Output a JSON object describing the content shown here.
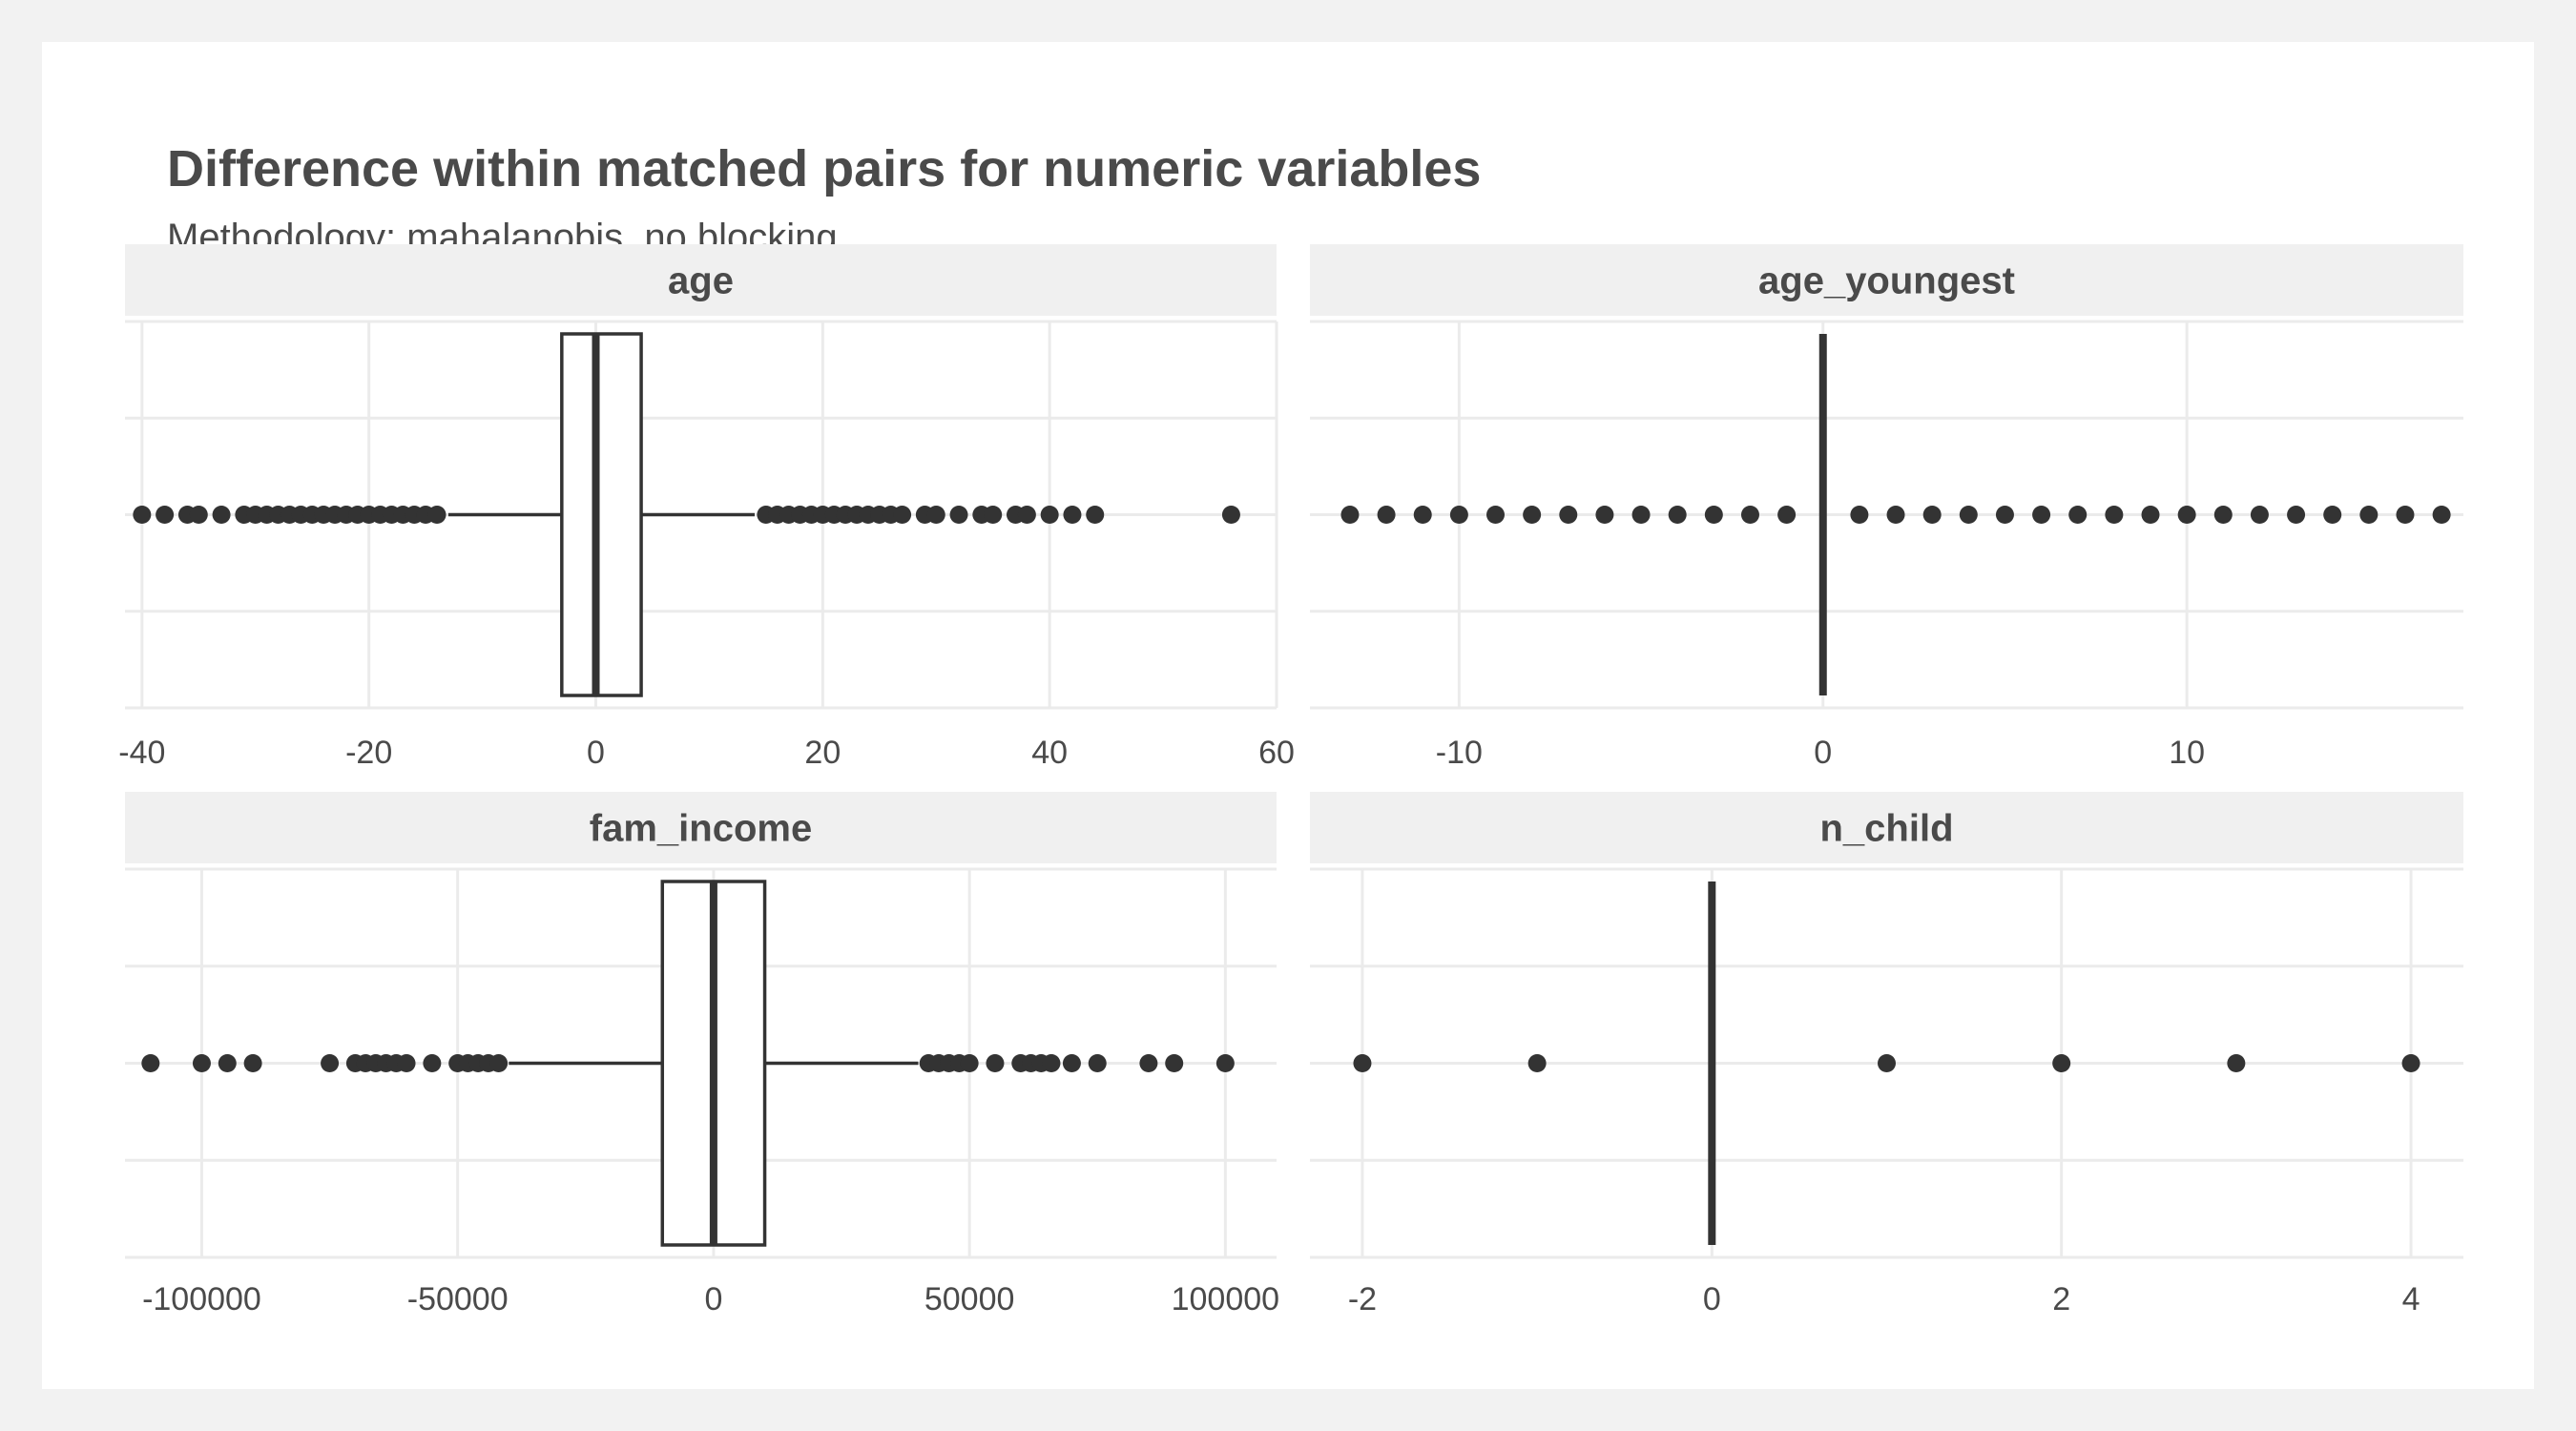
{
  "title": "Difference within matched pairs for numeric variables",
  "subtitle": "Methodology: mahalanobis, no blocking",
  "colors": {
    "background": "#f2f2f2",
    "panel": "#ffffff",
    "strip": "#f0f0f0",
    "grid": "#ebebeb",
    "ink": "#333333",
    "text": "#4a4a4a"
  },
  "chart_data": [
    {
      "type": "boxplot",
      "panel": "age",
      "xlim": [
        -41.5,
        60
      ],
      "ticks": [
        -40,
        -20,
        0,
        20,
        40,
        60
      ],
      "tick_labels": [
        "-40",
        "-20",
        "0",
        "20",
        "40",
        "60"
      ],
      "box": {
        "q1": -3,
        "median": 0,
        "q3": 4,
        "whisker_low": -13,
        "whisker_high": 14
      },
      "outliers": [
        -40,
        -38,
        -36,
        -35,
        -33,
        -31,
        -30,
        -29,
        -28,
        -27,
        -26,
        -25,
        -24,
        -23,
        -22,
        -21,
        -20,
        -19,
        -18,
        -17,
        -16,
        -15,
        -14,
        15,
        16,
        17,
        18,
        19,
        20,
        21,
        22,
        23,
        24,
        25,
        26,
        27,
        29,
        30,
        32,
        34,
        35,
        37,
        38,
        40,
        42,
        44,
        56
      ]
    },
    {
      "type": "boxplot",
      "panel": "age_youngest",
      "xlim": [
        -14.1,
        17.6
      ],
      "ticks": [
        -10,
        0,
        10
      ],
      "tick_labels": [
        "-10",
        "0",
        "10"
      ],
      "box": {
        "q1": 0,
        "median": 0,
        "q3": 0,
        "whisker_low": 0,
        "whisker_high": 0
      },
      "outliers": [
        -13,
        -12,
        -11,
        -10,
        -9,
        -8,
        -7,
        -6,
        -5,
        -4,
        -3,
        -2,
        -1,
        1,
        2,
        3,
        4,
        5,
        6,
        7,
        8,
        9,
        10,
        11,
        12,
        13,
        14,
        15,
        16,
        17
      ]
    },
    {
      "type": "boxplot",
      "panel": "fam_income",
      "xlim": [
        -115000,
        110000
      ],
      "ticks": [
        -100000,
        -50000,
        0,
        50000,
        100000
      ],
      "tick_labels": [
        "-100000",
        "-50000",
        "0",
        "50000",
        "100000"
      ],
      "box": {
        "q1": -10000,
        "median": 0,
        "q3": 10000,
        "whisker_low": -40000,
        "whisker_high": 40000
      },
      "outliers": [
        -110000,
        -100000,
        -95000,
        -90000,
        -75000,
        -70000,
        -68000,
        -66000,
        -64000,
        -62000,
        -60000,
        -55000,
        -50000,
        -48000,
        -46000,
        -44000,
        -42000,
        42000,
        44000,
        46000,
        48000,
        50000,
        55000,
        60000,
        62000,
        64000,
        66000,
        70000,
        75000,
        85000,
        90000,
        100000
      ]
    },
    {
      "type": "boxplot",
      "panel": "n_child",
      "xlim": [
        -2.3,
        4.3
      ],
      "ticks": [
        -2,
        0,
        2,
        4
      ],
      "tick_labels": [
        "-2",
        "0",
        "2",
        "4"
      ],
      "box": {
        "q1": 0,
        "median": 0,
        "q3": 0,
        "whisker_low": 0,
        "whisker_high": 0
      },
      "outliers": [
        -2,
        -1,
        1,
        2,
        3,
        4
      ]
    }
  ]
}
